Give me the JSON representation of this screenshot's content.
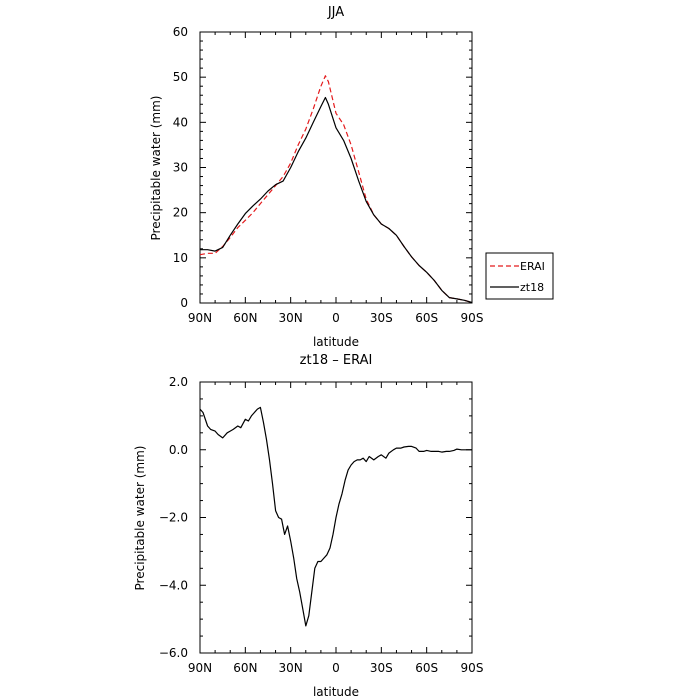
{
  "chart_data": [
    {
      "type": "line",
      "title": "JJA",
      "xlabel": "latitude",
      "ylabel": "Precipitable water (mm)",
      "xlim": [
        90,
        -90
      ],
      "ylim": [
        0,
        60
      ],
      "x_ticks": [
        90,
        60,
        30,
        0,
        -30,
        -60,
        -90
      ],
      "x_tick_labels": [
        "90N",
        "60N",
        "30N",
        "0",
        "30S",
        "60S",
        "90S"
      ],
      "y_ticks": [
        0,
        10,
        20,
        30,
        40,
        50,
        60
      ],
      "y_tick_labels": [
        "0",
        "10",
        "20",
        "30",
        "40",
        "50",
        "60"
      ],
      "grid": false,
      "legend": "right",
      "series": [
        {
          "name": "ERAI",
          "color": "#e41a1c",
          "style": "dashed",
          "x": [
            90,
            85,
            80,
            75,
            70,
            65,
            60,
            55,
            50,
            45,
            40,
            35,
            30,
            25,
            20,
            15,
            10,
            7,
            5,
            0,
            -5,
            -10,
            -15,
            -20,
            -25,
            -30,
            -35,
            -40,
            -45,
            -50,
            -55,
            -60,
            -65,
            -70,
            -75,
            -80,
            -85,
            -90
          ],
          "values": [
            10.7,
            11.0,
            11.0,
            12.5,
            14.5,
            16.7,
            18.3,
            20.0,
            22.0,
            24.0,
            26.0,
            28.0,
            31.0,
            35.0,
            38.5,
            43.0,
            48.0,
            50.3,
            49.0,
            42.0,
            39.5,
            35.0,
            29.0,
            23.0,
            19.5,
            17.5,
            16.5,
            15.0,
            12.5,
            10.2,
            8.3,
            6.8,
            5.0,
            2.8,
            1.2,
            0.9,
            0.6,
            0.1
          ]
        },
        {
          "name": "zt18",
          "color": "#000000",
          "style": "solid",
          "x": [
            90,
            85,
            80,
            75,
            70,
            65,
            60,
            55,
            50,
            45,
            40,
            35,
            30,
            25,
            20,
            15,
            10,
            7,
            5,
            0,
            -5,
            -10,
            -15,
            -20,
            -25,
            -30,
            -35,
            -40,
            -45,
            -50,
            -55,
            -60,
            -65,
            -70,
            -75,
            -80,
            -85,
            -90
          ],
          "values": [
            11.8,
            11.8,
            11.5,
            12.3,
            15.0,
            17.5,
            19.8,
            21.5,
            23.0,
            24.8,
            26.2,
            27.0,
            30.0,
            33.5,
            36.5,
            40.0,
            43.5,
            45.5,
            44.0,
            38.8,
            36.0,
            32.0,
            27.0,
            22.5,
            19.5,
            17.5,
            16.5,
            15.0,
            12.5,
            10.2,
            8.3,
            6.8,
            5.0,
            2.8,
            1.2,
            0.9,
            0.6,
            0.1
          ]
        }
      ]
    },
    {
      "type": "line",
      "title": "zt18 – ERAI",
      "xlabel": "latitude",
      "ylabel": "Precipitable water (mm)",
      "xlim": [
        90,
        -90
      ],
      "ylim": [
        -6,
        2
      ],
      "x_ticks": [
        90,
        60,
        30,
        0,
        -30,
        -60,
        -90
      ],
      "x_tick_labels": [
        "90N",
        "60N",
        "30N",
        "0",
        "30S",
        "60S",
        "90S"
      ],
      "y_ticks": [
        -6,
        -4,
        -2,
        0,
        2
      ],
      "y_tick_labels": [
        "−6.0",
        "−4.0",
        "−2.0",
        "0.0",
        "2.0"
      ],
      "grid": false,
      "series": [
        {
          "color": "#000000",
          "style": "solid",
          "x": [
            90,
            88,
            85,
            83,
            80,
            78,
            75,
            72,
            70,
            68,
            65,
            63,
            60,
            58,
            56,
            54,
            52,
            50,
            48,
            46,
            44,
            42,
            40,
            38,
            36,
            34,
            32,
            30,
            28,
            26,
            24,
            22,
            20,
            18,
            16,
            14,
            12,
            10,
            8,
            6,
            4,
            2,
            0,
            -2,
            -4,
            -6,
            -8,
            -10,
            -12,
            -14,
            -16,
            -18,
            -20,
            -22,
            -25,
            -28,
            -30,
            -33,
            -35,
            -38,
            -40,
            -43,
            -45,
            -48,
            -50,
            -53,
            -55,
            -58,
            -60,
            -63,
            -65,
            -68,
            -70,
            -73,
            -75,
            -78,
            -80,
            -83,
            -85,
            -88,
            -90
          ],
          "values": [
            1.2,
            1.1,
            0.7,
            0.6,
            0.55,
            0.45,
            0.35,
            0.5,
            0.55,
            0.6,
            0.7,
            0.65,
            0.9,
            0.85,
            1.0,
            1.1,
            1.2,
            1.25,
            0.8,
            0.3,
            -0.3,
            -1.0,
            -1.8,
            -2.0,
            -2.05,
            -2.5,
            -2.25,
            -2.7,
            -3.2,
            -3.8,
            -4.2,
            -4.7,
            -5.2,
            -4.9,
            -4.2,
            -3.5,
            -3.3,
            -3.3,
            -3.2,
            -3.1,
            -2.9,
            -2.5,
            -2.0,
            -1.6,
            -1.3,
            -0.9,
            -0.6,
            -0.45,
            -0.35,
            -0.3,
            -0.3,
            -0.25,
            -0.35,
            -0.2,
            -0.3,
            -0.2,
            -0.15,
            -0.25,
            -0.1,
            0.0,
            0.05,
            0.05,
            0.08,
            0.1,
            0.1,
            0.05,
            -0.05,
            -0.05,
            -0.02,
            -0.05,
            -0.05,
            -0.05,
            -0.07,
            -0.05,
            -0.05,
            -0.02,
            0.02,
            0.0,
            0.0,
            0.0,
            0.0
          ]
        }
      ]
    }
  ]
}
